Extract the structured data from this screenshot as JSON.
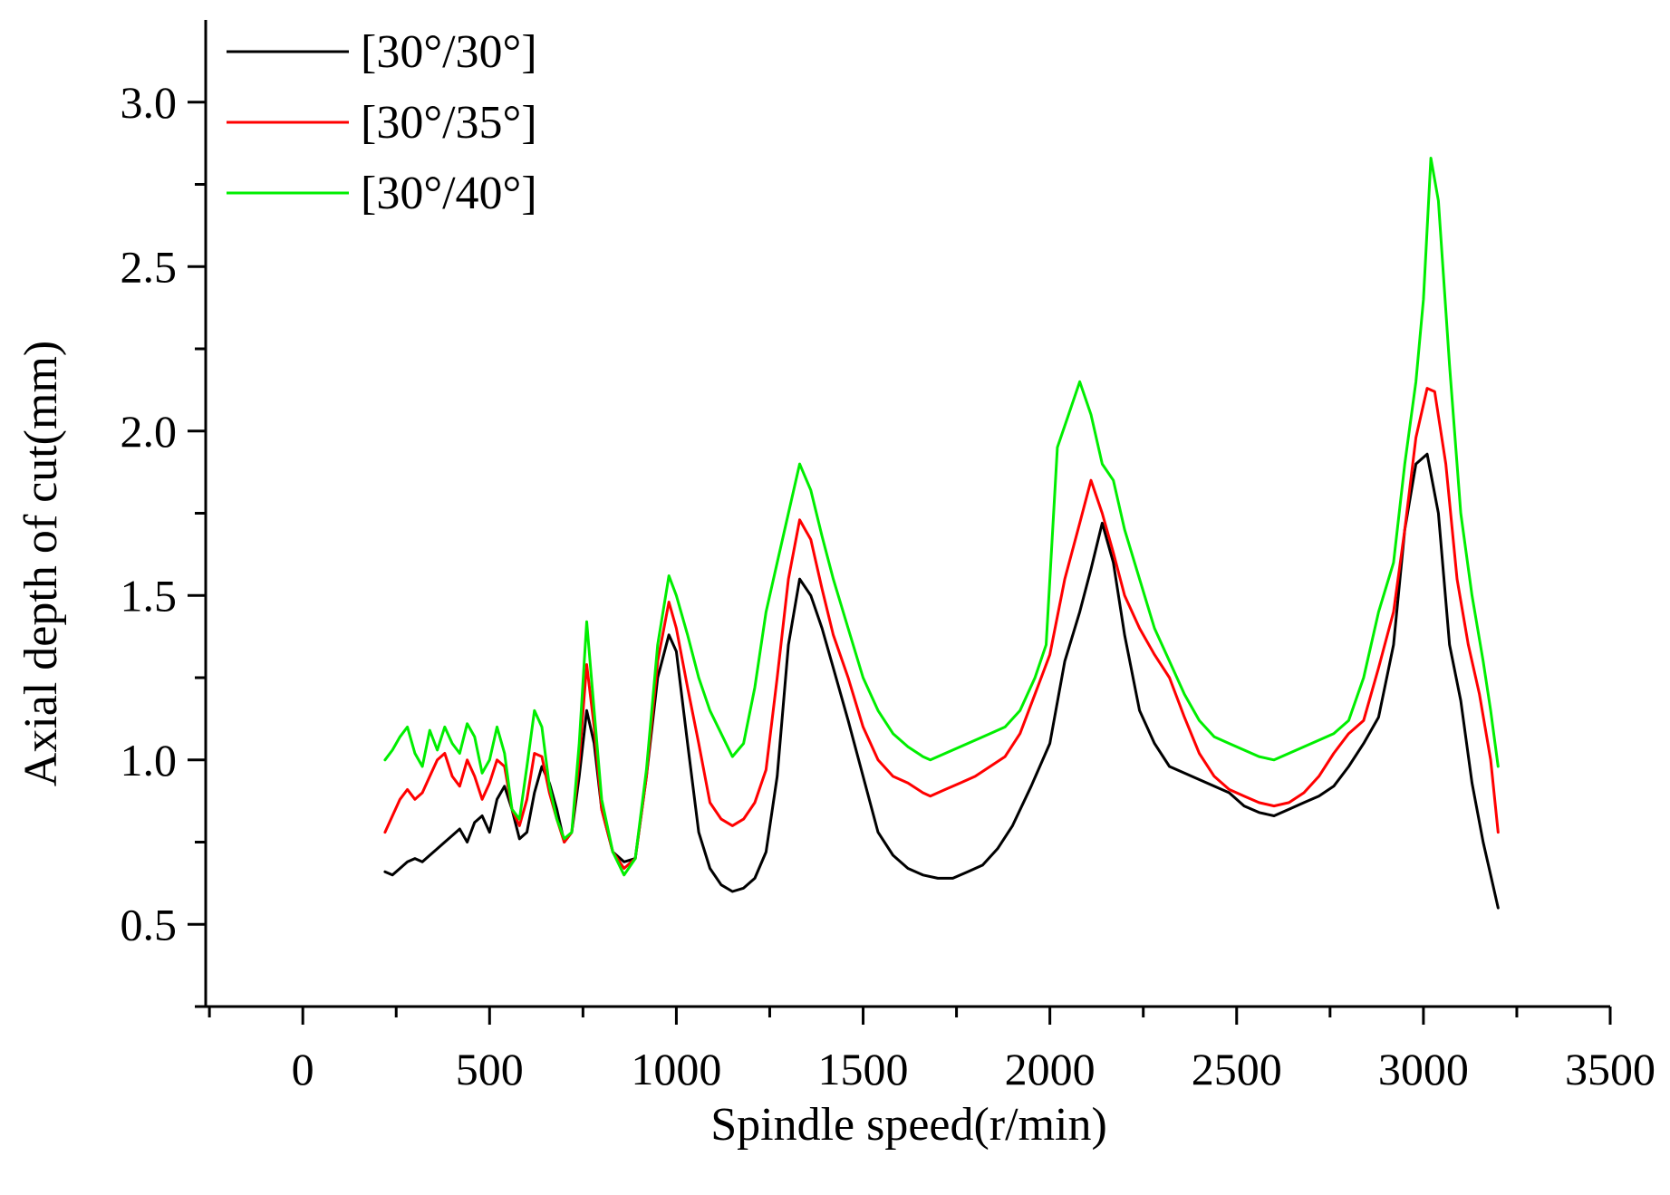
{
  "chart_data": {
    "type": "line",
    "title": "",
    "xlabel": "Spindle speed(r/min)",
    "ylabel": "Axial depth of cut(mm)",
    "xlim": [
      -260,
      3500
    ],
    "ylim": [
      0.25,
      3.25
    ],
    "xticks": [
      0,
      500,
      1000,
      1500,
      2000,
      2500,
      3000,
      3500
    ],
    "yticks": [
      0.5,
      1.0,
      1.5,
      2.0,
      2.5,
      3.0
    ],
    "xtick_labels": [
      "0",
      "500",
      "1000",
      "1500",
      "2000",
      "2500",
      "3000",
      "3500"
    ],
    "ytick_labels": [
      "0.5",
      "1.0",
      "1.5",
      "2.0",
      "2.5",
      "3.0"
    ],
    "grid": false,
    "legend_position": "top-left",
    "series": [
      {
        "name": "[30°/30°]",
        "color": "#000000",
        "points": [
          [
            220,
            0.66
          ],
          [
            240,
            0.65
          ],
          [
            260,
            0.67
          ],
          [
            280,
            0.69
          ],
          [
            300,
            0.7
          ],
          [
            320,
            0.69
          ],
          [
            340,
            0.71
          ],
          [
            360,
            0.73
          ],
          [
            380,
            0.75
          ],
          [
            400,
            0.77
          ],
          [
            420,
            0.79
          ],
          [
            440,
            0.75
          ],
          [
            460,
            0.81
          ],
          [
            480,
            0.83
          ],
          [
            500,
            0.78
          ],
          [
            520,
            0.88
          ],
          [
            540,
            0.92
          ],
          [
            560,
            0.85
          ],
          [
            580,
            0.76
          ],
          [
            600,
            0.78
          ],
          [
            620,
            0.9
          ],
          [
            640,
            0.98
          ],
          [
            660,
            0.93
          ],
          [
            680,
            0.85
          ],
          [
            700,
            0.75
          ],
          [
            720,
            0.78
          ],
          [
            740,
            0.95
          ],
          [
            760,
            1.15
          ],
          [
            780,
            1.05
          ],
          [
            800,
            0.85
          ],
          [
            830,
            0.72
          ],
          [
            860,
            0.69
          ],
          [
            890,
            0.7
          ],
          [
            920,
            0.95
          ],
          [
            950,
            1.25
          ],
          [
            980,
            1.38
          ],
          [
            1000,
            1.33
          ],
          [
            1030,
            1.05
          ],
          [
            1060,
            0.78
          ],
          [
            1090,
            0.67
          ],
          [
            1120,
            0.62
          ],
          [
            1150,
            0.6
          ],
          [
            1180,
            0.61
          ],
          [
            1210,
            0.64
          ],
          [
            1240,
            0.72
          ],
          [
            1270,
            0.95
          ],
          [
            1300,
            1.35
          ],
          [
            1330,
            1.55
          ],
          [
            1360,
            1.5
          ],
          [
            1390,
            1.4
          ],
          [
            1420,
            1.28
          ],
          [
            1460,
            1.12
          ],
          [
            1500,
            0.95
          ],
          [
            1540,
            0.78
          ],
          [
            1580,
            0.71
          ],
          [
            1620,
            0.67
          ],
          [
            1660,
            0.65
          ],
          [
            1700,
            0.64
          ],
          [
            1740,
            0.64
          ],
          [
            1780,
            0.66
          ],
          [
            1820,
            0.68
          ],
          [
            1860,
            0.73
          ],
          [
            1900,
            0.8
          ],
          [
            1950,
            0.92
          ],
          [
            2000,
            1.05
          ],
          [
            2040,
            1.3
          ],
          [
            2080,
            1.45
          ],
          [
            2110,
            1.58
          ],
          [
            2140,
            1.72
          ],
          [
            2170,
            1.6
          ],
          [
            2200,
            1.38
          ],
          [
            2240,
            1.15
          ],
          [
            2280,
            1.05
          ],
          [
            2320,
            0.98
          ],
          [
            2380,
            0.95
          ],
          [
            2440,
            0.92
          ],
          [
            2480,
            0.9
          ],
          [
            2520,
            0.86
          ],
          [
            2560,
            0.84
          ],
          [
            2600,
            0.83
          ],
          [
            2640,
            0.85
          ],
          [
            2680,
            0.87
          ],
          [
            2720,
            0.89
          ],
          [
            2760,
            0.92
          ],
          [
            2800,
            0.98
          ],
          [
            2840,
            1.05
          ],
          [
            2880,
            1.13
          ],
          [
            2920,
            1.35
          ],
          [
            2950,
            1.7
          ],
          [
            2980,
            1.9
          ],
          [
            3010,
            1.93
          ],
          [
            3040,
            1.75
          ],
          [
            3070,
            1.35
          ],
          [
            3100,
            1.18
          ],
          [
            3130,
            0.93
          ],
          [
            3160,
            0.75
          ],
          [
            3180,
            0.65
          ],
          [
            3200,
            0.55
          ]
        ]
      },
      {
        "name": "[30°/35°]",
        "color": "#ff0000",
        "points": [
          [
            220,
            0.78
          ],
          [
            240,
            0.83
          ],
          [
            260,
            0.88
          ],
          [
            280,
            0.91
          ],
          [
            300,
            0.88
          ],
          [
            320,
            0.9
          ],
          [
            340,
            0.95
          ],
          [
            360,
            1.0
          ],
          [
            380,
            1.02
          ],
          [
            400,
            0.95
          ],
          [
            420,
            0.92
          ],
          [
            440,
            1.0
          ],
          [
            460,
            0.95
          ],
          [
            480,
            0.88
          ],
          [
            500,
            0.93
          ],
          [
            520,
            1.0
          ],
          [
            540,
            0.98
          ],
          [
            560,
            0.85
          ],
          [
            580,
            0.8
          ],
          [
            600,
            0.88
          ],
          [
            620,
            1.02
          ],
          [
            640,
            1.01
          ],
          [
            660,
            0.9
          ],
          [
            680,
            0.82
          ],
          [
            700,
            0.75
          ],
          [
            720,
            0.78
          ],
          [
            740,
            1.0
          ],
          [
            760,
            1.29
          ],
          [
            780,
            1.1
          ],
          [
            800,
            0.85
          ],
          [
            830,
            0.72
          ],
          [
            860,
            0.67
          ],
          [
            890,
            0.7
          ],
          [
            920,
            0.95
          ],
          [
            950,
            1.3
          ],
          [
            980,
            1.48
          ],
          [
            1000,
            1.4
          ],
          [
            1030,
            1.22
          ],
          [
            1060,
            1.05
          ],
          [
            1090,
            0.87
          ],
          [
            1120,
            0.82
          ],
          [
            1150,
            0.8
          ],
          [
            1180,
            0.82
          ],
          [
            1210,
            0.87
          ],
          [
            1240,
            0.97
          ],
          [
            1270,
            1.25
          ],
          [
            1300,
            1.55
          ],
          [
            1330,
            1.73
          ],
          [
            1360,
            1.67
          ],
          [
            1390,
            1.52
          ],
          [
            1420,
            1.38
          ],
          [
            1460,
            1.25
          ],
          [
            1500,
            1.1
          ],
          [
            1540,
            1.0
          ],
          [
            1580,
            0.95
          ],
          [
            1620,
            0.93
          ],
          [
            1660,
            0.9
          ],
          [
            1680,
            0.89
          ],
          [
            1720,
            0.91
          ],
          [
            1760,
            0.93
          ],
          [
            1800,
            0.95
          ],
          [
            1840,
            0.98
          ],
          [
            1880,
            1.01
          ],
          [
            1920,
            1.08
          ],
          [
            1960,
            1.2
          ],
          [
            2000,
            1.32
          ],
          [
            2040,
            1.55
          ],
          [
            2080,
            1.72
          ],
          [
            2110,
            1.85
          ],
          [
            2140,
            1.75
          ],
          [
            2170,
            1.63
          ],
          [
            2200,
            1.5
          ],
          [
            2240,
            1.4
          ],
          [
            2280,
            1.32
          ],
          [
            2320,
            1.25
          ],
          [
            2360,
            1.13
          ],
          [
            2400,
            1.02
          ],
          [
            2440,
            0.95
          ],
          [
            2480,
            0.91
          ],
          [
            2520,
            0.89
          ],
          [
            2560,
            0.87
          ],
          [
            2600,
            0.86
          ],
          [
            2640,
            0.87
          ],
          [
            2680,
            0.9
          ],
          [
            2720,
            0.95
          ],
          [
            2760,
            1.02
          ],
          [
            2800,
            1.08
          ],
          [
            2840,
            1.12
          ],
          [
            2880,
            1.28
          ],
          [
            2920,
            1.45
          ],
          [
            2950,
            1.7
          ],
          [
            2980,
            1.98
          ],
          [
            3010,
            2.13
          ],
          [
            3030,
            2.12
          ],
          [
            3060,
            1.9
          ],
          [
            3090,
            1.55
          ],
          [
            3120,
            1.35
          ],
          [
            3150,
            1.2
          ],
          [
            3180,
            1.0
          ],
          [
            3200,
            0.78
          ]
        ]
      },
      {
        "name": "[30°/40°]",
        "color": "#00ee00",
        "points": [
          [
            220,
            1.0
          ],
          [
            240,
            1.03
          ],
          [
            260,
            1.07
          ],
          [
            280,
            1.1
          ],
          [
            300,
            1.02
          ],
          [
            320,
            0.98
          ],
          [
            340,
            1.09
          ],
          [
            360,
            1.03
          ],
          [
            380,
            1.1
          ],
          [
            400,
            1.05
          ],
          [
            420,
            1.02
          ],
          [
            440,
            1.11
          ],
          [
            460,
            1.07
          ],
          [
            480,
            0.96
          ],
          [
            500,
            1.0
          ],
          [
            520,
            1.1
          ],
          [
            540,
            1.02
          ],
          [
            560,
            0.85
          ],
          [
            580,
            0.82
          ],
          [
            600,
            0.98
          ],
          [
            620,
            1.15
          ],
          [
            640,
            1.1
          ],
          [
            660,
            0.92
          ],
          [
            680,
            0.82
          ],
          [
            700,
            0.76
          ],
          [
            720,
            0.78
          ],
          [
            740,
            1.05
          ],
          [
            760,
            1.42
          ],
          [
            780,
            1.15
          ],
          [
            800,
            0.88
          ],
          [
            830,
            0.72
          ],
          [
            860,
            0.65
          ],
          [
            890,
            0.7
          ],
          [
            920,
            0.97
          ],
          [
            950,
            1.35
          ],
          [
            980,
            1.56
          ],
          [
            1000,
            1.5
          ],
          [
            1030,
            1.38
          ],
          [
            1060,
            1.25
          ],
          [
            1090,
            1.15
          ],
          [
            1120,
            1.08
          ],
          [
            1150,
            1.01
          ],
          [
            1180,
            1.05
          ],
          [
            1210,
            1.22
          ],
          [
            1240,
            1.45
          ],
          [
            1270,
            1.6
          ],
          [
            1300,
            1.75
          ],
          [
            1330,
            1.9
          ],
          [
            1360,
            1.82
          ],
          [
            1390,
            1.68
          ],
          [
            1420,
            1.55
          ],
          [
            1460,
            1.4
          ],
          [
            1500,
            1.25
          ],
          [
            1540,
            1.15
          ],
          [
            1580,
            1.08
          ],
          [
            1620,
            1.04
          ],
          [
            1660,
            1.01
          ],
          [
            1680,
            1.0
          ],
          [
            1720,
            1.02
          ],
          [
            1760,
            1.04
          ],
          [
            1800,
            1.06
          ],
          [
            1840,
            1.08
          ],
          [
            1880,
            1.1
          ],
          [
            1920,
            1.15
          ],
          [
            1960,
            1.25
          ],
          [
            1990,
            1.35
          ],
          [
            2020,
            1.95
          ],
          [
            2050,
            2.05
          ],
          [
            2080,
            2.15
          ],
          [
            2110,
            2.05
          ],
          [
            2140,
            1.9
          ],
          [
            2170,
            1.85
          ],
          [
            2200,
            1.7
          ],
          [
            2240,
            1.55
          ],
          [
            2280,
            1.4
          ],
          [
            2320,
            1.3
          ],
          [
            2360,
            1.2
          ],
          [
            2400,
            1.12
          ],
          [
            2440,
            1.07
          ],
          [
            2480,
            1.05
          ],
          [
            2520,
            1.03
          ],
          [
            2560,
            1.01
          ],
          [
            2600,
            1.0
          ],
          [
            2640,
            1.02
          ],
          [
            2680,
            1.04
          ],
          [
            2720,
            1.06
          ],
          [
            2760,
            1.08
          ],
          [
            2800,
            1.12
          ],
          [
            2840,
            1.25
          ],
          [
            2880,
            1.45
          ],
          [
            2920,
            1.6
          ],
          [
            2950,
            1.9
          ],
          [
            2980,
            2.15
          ],
          [
            3000,
            2.4
          ],
          [
            3020,
            2.83
          ],
          [
            3040,
            2.7
          ],
          [
            3070,
            2.2
          ],
          [
            3100,
            1.75
          ],
          [
            3130,
            1.5
          ],
          [
            3160,
            1.3
          ],
          [
            3180,
            1.15
          ],
          [
            3200,
            0.98
          ]
        ]
      }
    ]
  }
}
